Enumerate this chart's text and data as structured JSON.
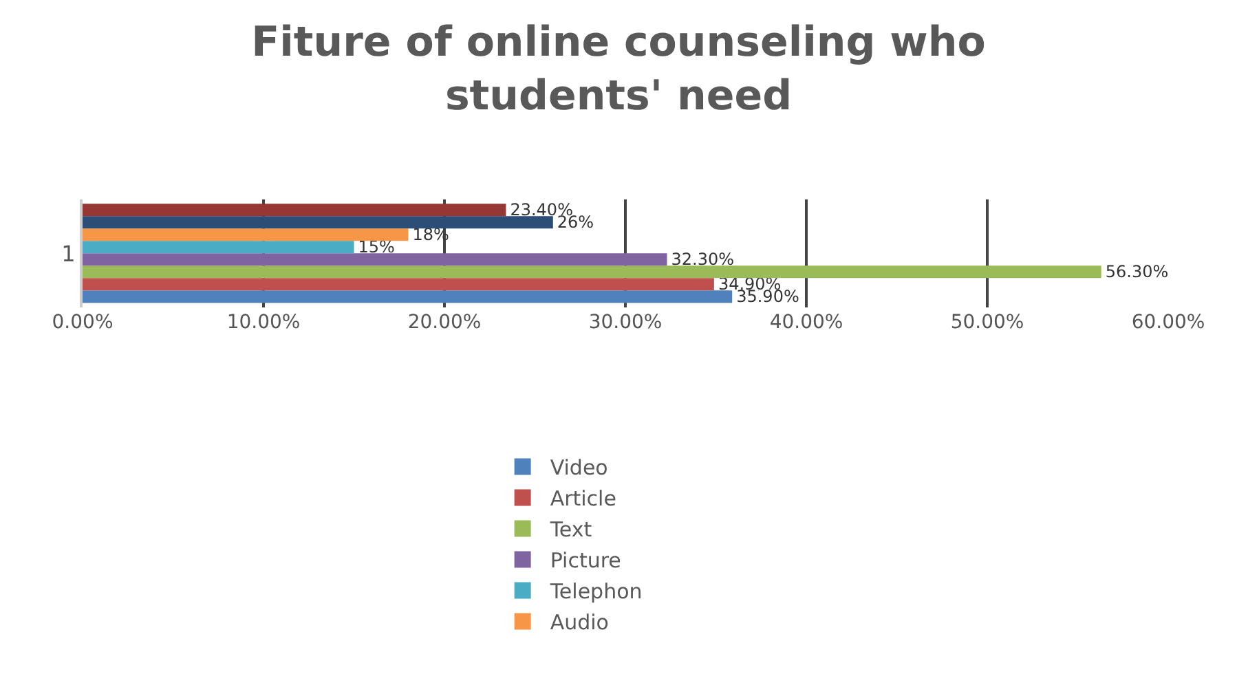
{
  "chart_data": {
    "type": "bar",
    "orientation": "horizontal",
    "title": "Fiture of online counseling who students' need",
    "categories": [
      "1"
    ],
    "series": [
      {
        "name": "Video",
        "color": "#4f81bd",
        "values": [
          35.9
        ],
        "value_labels": [
          "35.90%"
        ]
      },
      {
        "name": "Article",
        "color": "#c0504d",
        "values": [
          34.9
        ],
        "value_labels": [
          "34.90%"
        ]
      },
      {
        "name": "Text",
        "color": "#9bbb59",
        "values": [
          56.3
        ],
        "value_labels": [
          "56.30%"
        ]
      },
      {
        "name": "Picture",
        "color": "#8064a2",
        "values": [
          32.3
        ],
        "value_labels": [
          "32.30%"
        ]
      },
      {
        "name": "Telephon",
        "color": "#4bacc6",
        "values": [
          15
        ],
        "value_labels": [
          "15%"
        ]
      },
      {
        "name": "Audio",
        "color": "#f79646",
        "values": [
          18
        ],
        "value_labels": [
          "18%"
        ]
      },
      {
        "color": "#2c4d75",
        "values": [
          26
        ],
        "value_labels": [
          "26%"
        ]
      },
      {
        "color": "#953735",
        "values": [
          23.4
        ],
        "value_labels": [
          "23.40%"
        ]
      }
    ],
    "xlim": [
      0,
      60
    ],
    "xticks": [
      {
        "value": 0,
        "label": "0.00%"
      },
      {
        "value": 10,
        "label": "10.00%"
      },
      {
        "value": 20,
        "label": "20.00%"
      },
      {
        "value": 30,
        "label": "30.00%"
      },
      {
        "value": 40,
        "label": "40.00%"
      },
      {
        "value": 50,
        "label": "50.00%"
      },
      {
        "value": 60,
        "label": "60.00%"
      }
    ],
    "grid": "x",
    "legend": "bottom"
  }
}
